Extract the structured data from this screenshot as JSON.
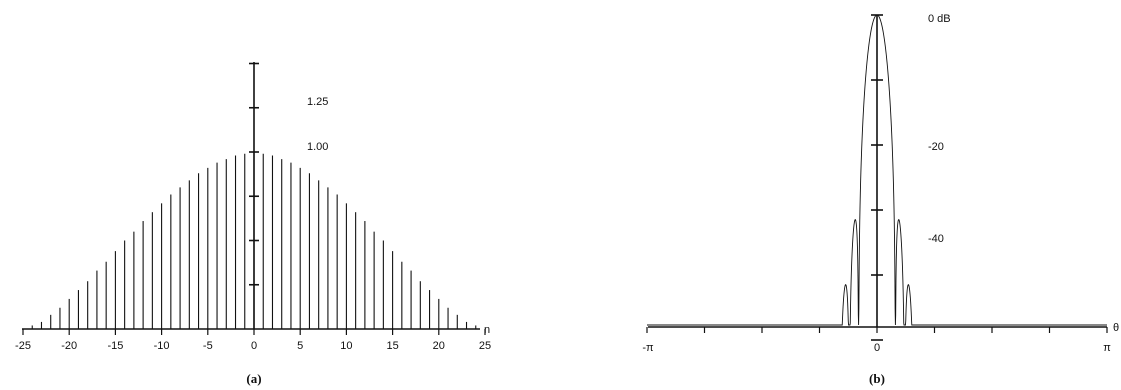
{
  "chart_data": [
    {
      "type": "bar",
      "subtype": "stem",
      "caption": "(a)",
      "x_label": "n",
      "x_ticks": [
        "-25",
        "-20",
        "-15",
        "-10",
        "-5",
        "0",
        "5",
        "10",
        "15",
        "20",
        "25"
      ],
      "y_tick_labels": [
        "1.25",
        "1.00"
      ],
      "xlim": [
        -25,
        25
      ],
      "ylim": [
        0,
        1.5
      ],
      "x": [
        -24,
        -23,
        -22,
        -21,
        -20,
        -19,
        -18,
        -17,
        -16,
        -15,
        -14,
        -13,
        -12,
        -11,
        -10,
        -9,
        -8,
        -7,
        -6,
        -5,
        -4,
        -3,
        -2,
        -1,
        0,
        1,
        2,
        3,
        4,
        5,
        6,
        7,
        8,
        9,
        10,
        11,
        12,
        13,
        14,
        15,
        16,
        17,
        18,
        19,
        20,
        21,
        22,
        23,
        24
      ],
      "values": [
        0.02,
        0.04,
        0.08,
        0.12,
        0.17,
        0.22,
        0.27,
        0.33,
        0.38,
        0.44,
        0.5,
        0.55,
        0.61,
        0.66,
        0.71,
        0.76,
        0.8,
        0.84,
        0.88,
        0.91,
        0.94,
        0.96,
        0.98,
        0.99,
        1.0,
        0.99,
        0.98,
        0.96,
        0.94,
        0.91,
        0.88,
        0.84,
        0.8,
        0.76,
        0.71,
        0.66,
        0.61,
        0.55,
        0.5,
        0.44,
        0.38,
        0.33,
        0.27,
        0.22,
        0.17,
        0.12,
        0.08,
        0.04,
        0.02
      ],
      "grid": false
    },
    {
      "type": "line",
      "caption": "(b)",
      "x_label": "θ",
      "x_ticks": [
        "-π",
        "0",
        "π"
      ],
      "y_tick_labels": [
        "0 dB",
        "-20",
        "-40"
      ],
      "xlim": [
        -3.1416,
        3.1416
      ],
      "ylim": [
        -70,
        0
      ],
      "grid": false
    }
  ]
}
